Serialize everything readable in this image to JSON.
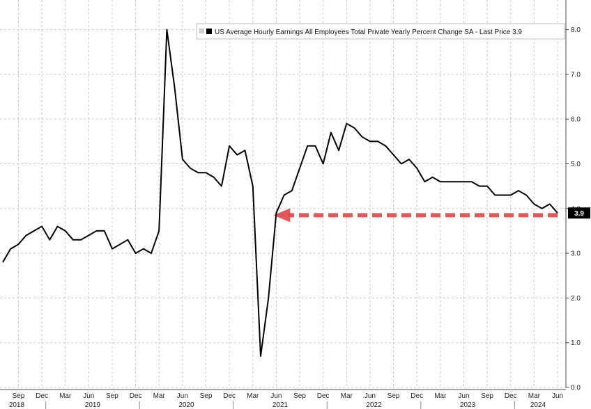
{
  "chart_data": {
    "type": "line",
    "title": "",
    "xlabel": "",
    "ylabel": "",
    "ylim": [
      0,
      8.6
    ],
    "yticks": [
      0.0,
      1.0,
      2.0,
      3.0,
      4.0,
      5.0,
      6.0,
      7.0,
      8.0
    ],
    "ytick_labels": [
      "0.0",
      "1.0",
      "2.0",
      "3.0",
      "4.0",
      "5.0",
      "6.0",
      "7.0",
      "8.0"
    ],
    "grid": true,
    "legend_position": "top-right",
    "x_start": "2018-07",
    "x_end": "2024-06",
    "xtick_labels": [
      {
        "date": "2018-09",
        "label": "Sep"
      },
      {
        "date": "2018-12",
        "label": "Dec"
      },
      {
        "date": "2019-03",
        "label": "Mar"
      },
      {
        "date": "2019-06",
        "label": "Jun"
      },
      {
        "date": "2019-09",
        "label": "Sep"
      },
      {
        "date": "2019-12",
        "label": "Dec"
      },
      {
        "date": "2020-03",
        "label": "Mar"
      },
      {
        "date": "2020-06",
        "label": "Jun"
      },
      {
        "date": "2020-09",
        "label": "Sep"
      },
      {
        "date": "2020-12",
        "label": "Dec"
      },
      {
        "date": "2021-03",
        "label": "Mar"
      },
      {
        "date": "2021-06",
        "label": "Jun"
      },
      {
        "date": "2021-09",
        "label": "Sep"
      },
      {
        "date": "2021-12",
        "label": "Dec"
      },
      {
        "date": "2022-03",
        "label": "Mar"
      },
      {
        "date": "2022-06",
        "label": "Jun"
      },
      {
        "date": "2022-09",
        "label": "Sep"
      },
      {
        "date": "2022-12",
        "label": "Dec"
      },
      {
        "date": "2023-03",
        "label": "Mar"
      },
      {
        "date": "2023-06",
        "label": "Jun"
      },
      {
        "date": "2023-09",
        "label": "Sep"
      },
      {
        "date": "2023-12",
        "label": "Dec"
      },
      {
        "date": "2024-03",
        "label": "Mar"
      },
      {
        "date": "2024-06",
        "label": "Jun"
      }
    ],
    "year_labels": [
      {
        "label": "2018",
        "from": "2018-07",
        "to": "2018-12"
      },
      {
        "label": "2019",
        "from": "2019-01",
        "to": "2019-12"
      },
      {
        "label": "2020",
        "from": "2020-01",
        "to": "2020-12"
      },
      {
        "label": "2021",
        "from": "2021-01",
        "to": "2021-12"
      },
      {
        "label": "2022",
        "from": "2022-01",
        "to": "2022-12"
      },
      {
        "label": "2023",
        "from": "2023-01",
        "to": "2023-12"
      },
      {
        "label": "2024",
        "from": "2024-01",
        "to": "2024-06"
      }
    ],
    "series": [
      {
        "name": "US Average Hourly Earnings All Employees Total Private Yearly Percent Change SA - Last Price 3.9",
        "color": "#000000",
        "x": [
          "2018-07",
          "2018-08",
          "2018-09",
          "2018-10",
          "2018-11",
          "2018-12",
          "2019-01",
          "2019-02",
          "2019-03",
          "2019-04",
          "2019-05",
          "2019-06",
          "2019-07",
          "2019-08",
          "2019-09",
          "2019-10",
          "2019-11",
          "2019-12",
          "2020-01",
          "2020-02",
          "2020-03",
          "2020-04",
          "2020-05",
          "2020-06",
          "2020-07",
          "2020-08",
          "2020-09",
          "2020-10",
          "2020-11",
          "2020-12",
          "2021-01",
          "2021-02",
          "2021-03",
          "2021-04",
          "2021-05",
          "2021-06",
          "2021-07",
          "2021-08",
          "2021-09",
          "2021-10",
          "2021-11",
          "2021-12",
          "2022-01",
          "2022-02",
          "2022-03",
          "2022-04",
          "2022-05",
          "2022-06",
          "2022-07",
          "2022-08",
          "2022-09",
          "2022-10",
          "2022-11",
          "2022-12",
          "2023-01",
          "2023-02",
          "2023-03",
          "2023-04",
          "2023-05",
          "2023-06",
          "2023-07",
          "2023-08",
          "2023-09",
          "2023-10",
          "2023-11",
          "2023-12",
          "2024-01",
          "2024-02",
          "2024-03",
          "2024-04",
          "2024-05",
          "2024-06"
        ],
        "y": [
          2.8,
          3.1,
          3.2,
          3.4,
          3.5,
          3.6,
          3.3,
          3.6,
          3.5,
          3.3,
          3.3,
          3.4,
          3.5,
          3.5,
          3.1,
          3.2,
          3.3,
          3.0,
          3.1,
          3.0,
          3.5,
          8.0,
          6.7,
          5.1,
          4.9,
          4.8,
          4.8,
          4.7,
          4.5,
          5.4,
          5.2,
          5.3,
          4.5,
          0.7,
          2.0,
          3.9,
          4.3,
          4.4,
          4.9,
          5.4,
          5.4,
          5.0,
          5.7,
          5.3,
          5.9,
          5.8,
          5.6,
          5.5,
          5.5,
          5.4,
          5.2,
          5.0,
          5.1,
          4.9,
          4.6,
          4.7,
          4.6,
          4.6,
          4.6,
          4.6,
          4.6,
          4.5,
          4.5,
          4.3,
          4.3,
          4.3,
          4.4,
          4.3,
          4.1,
          4.0,
          4.1,
          3.9
        ]
      }
    ],
    "annotations": [
      {
        "type": "arrow",
        "text": "",
        "color": "#e03a3a",
        "from_date": "2024-06",
        "to_date": "2021-06",
        "y": 3.85
      }
    ],
    "last_value_label": "3.9"
  }
}
